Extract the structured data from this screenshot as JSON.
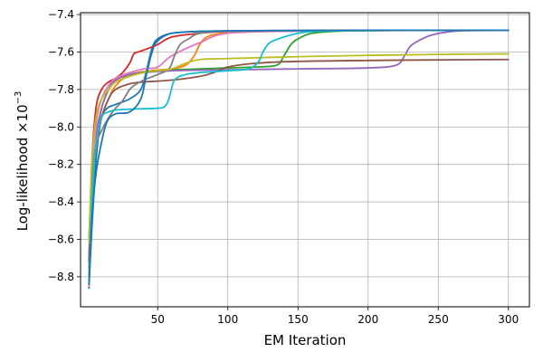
{
  "chart_data": {
    "type": "line",
    "xlabel": "EM Iteration",
    "ylabel_text": "Log-likelihood ×10",
    "ylabel_exp": "−3",
    "xlim": [
      -5,
      315
    ],
    "ylim": [
      -8.96,
      -7.39
    ],
    "xticks": [
      50,
      100,
      150,
      200,
      250,
      300
    ],
    "xtick_labels": [
      "50",
      "100",
      "150",
      "200",
      "250",
      "300"
    ],
    "yticks": [
      -8.8,
      -8.6,
      -8.4,
      -8.2,
      -8.0,
      -7.8,
      -7.6,
      -7.4
    ],
    "ytick_labels": [
      "−8.8",
      "−8.6",
      "−8.4",
      "−8.2",
      "−8.0",
      "−7.8",
      "−7.6",
      "−7.4"
    ],
    "grid": true,
    "series": [
      {
        "color": "#1f77b4",
        "x": [
          1,
          3,
          5,
          7,
          10,
          14,
          20,
          30,
          38,
          42,
          46,
          50,
          60,
          80,
          100,
          150,
          200,
          250,
          300
        ],
        "y": [
          -8.86,
          -8.55,
          -8.3,
          -8.1,
          -7.95,
          -7.9,
          -7.88,
          -7.85,
          -7.8,
          -7.7,
          -7.58,
          -7.53,
          -7.5,
          -7.49,
          -7.487,
          -7.485,
          -7.484,
          -7.484,
          -7.484
        ]
      },
      {
        "color": "#ff7f0e",
        "x": [
          1,
          3,
          6,
          10,
          15,
          20,
          30,
          45,
          60,
          70,
          76,
          80,
          85,
          95,
          110,
          150,
          200,
          250,
          300
        ],
        "y": [
          -8.75,
          -8.4,
          -8.1,
          -7.95,
          -7.85,
          -7.78,
          -7.72,
          -7.7,
          -7.69,
          -7.67,
          -7.62,
          -7.56,
          -7.52,
          -7.5,
          -7.49,
          -7.486,
          -7.485,
          -7.484,
          -7.484
        ]
      },
      {
        "color": "#2ca02c",
        "x": [
          1,
          3,
          6,
          10,
          15,
          20,
          30,
          50,
          80,
          100,
          120,
          135,
          140,
          145,
          150,
          160,
          180,
          200,
          250,
          300
        ],
        "y": [
          -8.7,
          -8.4,
          -8.1,
          -7.9,
          -7.8,
          -7.75,
          -7.72,
          -7.7,
          -7.69,
          -7.685,
          -7.68,
          -7.67,
          -7.62,
          -7.56,
          -7.53,
          -7.5,
          -7.488,
          -7.485,
          -7.484,
          -7.484
        ]
      },
      {
        "color": "#d62728",
        "x": [
          1,
          3,
          6,
          10,
          15,
          20,
          25,
          30,
          33,
          36,
          40,
          50,
          60,
          80,
          100,
          150,
          200,
          250,
          300
        ],
        "y": [
          -8.72,
          -8.2,
          -7.9,
          -7.8,
          -7.76,
          -7.74,
          -7.71,
          -7.66,
          -7.61,
          -7.6,
          -7.59,
          -7.56,
          -7.52,
          -7.5,
          -7.49,
          -7.486,
          -7.485,
          -7.484,
          -7.484
        ]
      },
      {
        "color": "#9467bd",
        "x": [
          1,
          3,
          6,
          10,
          15,
          20,
          30,
          40,
          60,
          100,
          150,
          200,
          220,
          226,
          230,
          236,
          245,
          260,
          280,
          300
        ],
        "y": [
          -8.6,
          -8.3,
          -8.05,
          -7.9,
          -7.8,
          -7.75,
          -7.72,
          -7.71,
          -7.7,
          -7.695,
          -7.69,
          -7.685,
          -7.67,
          -7.62,
          -7.57,
          -7.54,
          -7.51,
          -7.49,
          -7.485,
          -7.484
        ]
      },
      {
        "color": "#8c564b",
        "x": [
          1,
          3,
          6,
          10,
          15,
          20,
          30,
          40,
          60,
          80,
          90,
          100,
          120,
          150,
          200,
          250,
          300
        ],
        "y": [
          -8.8,
          -8.4,
          -8.1,
          -7.95,
          -7.85,
          -7.8,
          -7.77,
          -7.76,
          -7.75,
          -7.73,
          -7.71,
          -7.68,
          -7.66,
          -7.65,
          -7.645,
          -7.642,
          -7.64
        ]
      },
      {
        "color": "#e377c2",
        "x": [
          1,
          3,
          6,
          10,
          15,
          20,
          30,
          40,
          50,
          60,
          80,
          100,
          150,
          200,
          250,
          300
        ],
        "y": [
          -8.85,
          -8.4,
          -8.0,
          -7.85,
          -7.78,
          -7.74,
          -7.71,
          -7.69,
          -7.68,
          -7.62,
          -7.55,
          -7.5,
          -7.488,
          -7.485,
          -7.484,
          -7.484
        ]
      },
      {
        "color": "#7f7f7f",
        "x": [
          1,
          3,
          6,
          10,
          15,
          20,
          25,
          30,
          35,
          40,
          50,
          58,
          62,
          66,
          72,
          80,
          100,
          150,
          200,
          250,
          300
        ],
        "y": [
          -8.6,
          -8.3,
          -8.1,
          -8.02,
          -7.95,
          -7.9,
          -7.86,
          -7.8,
          -7.77,
          -7.75,
          -7.72,
          -7.69,
          -7.62,
          -7.56,
          -7.53,
          -7.5,
          -7.49,
          -7.486,
          -7.485,
          -7.484,
          -7.484
        ]
      },
      {
        "color": "#bcbd22",
        "x": [
          1,
          3,
          6,
          10,
          15,
          20,
          30,
          40,
          50,
          60,
          70,
          80,
          100,
          150,
          200,
          250,
          300
        ],
        "y": [
          -8.62,
          -8.2,
          -7.95,
          -7.85,
          -7.8,
          -7.76,
          -7.73,
          -7.71,
          -7.7,
          -7.69,
          -7.66,
          -7.64,
          -7.635,
          -7.625,
          -7.618,
          -7.613,
          -7.61
        ]
      },
      {
        "color": "#17becf",
        "x": [
          1,
          3,
          6,
          10,
          15,
          20,
          30,
          50,
          55,
          58,
          62,
          70,
          80,
          100,
          115,
          122,
          125,
          130,
          140,
          150,
          160,
          180,
          200,
          250,
          300
        ],
        "y": [
          -8.84,
          -8.4,
          -8.1,
          -7.95,
          -7.92,
          -7.91,
          -7.905,
          -7.9,
          -7.89,
          -7.85,
          -7.75,
          -7.72,
          -7.71,
          -7.7,
          -7.69,
          -7.65,
          -7.6,
          -7.55,
          -7.52,
          -7.5,
          -7.49,
          -7.486,
          -7.485,
          -7.484,
          -7.484
        ]
      },
      {
        "color": "#1f77b4",
        "x": [
          1,
          3,
          6,
          10,
          14,
          20,
          30,
          38,
          42,
          46,
          50,
          60,
          80,
          100,
          150,
          200,
          250,
          300
        ],
        "y": [
          -8.84,
          -8.5,
          -8.25,
          -8.08,
          -7.97,
          -7.93,
          -7.92,
          -7.85,
          -7.72,
          -7.6,
          -7.54,
          -7.5,
          -7.49,
          -7.487,
          -7.485,
          -7.484,
          -7.484,
          -7.484
        ]
      }
    ]
  }
}
